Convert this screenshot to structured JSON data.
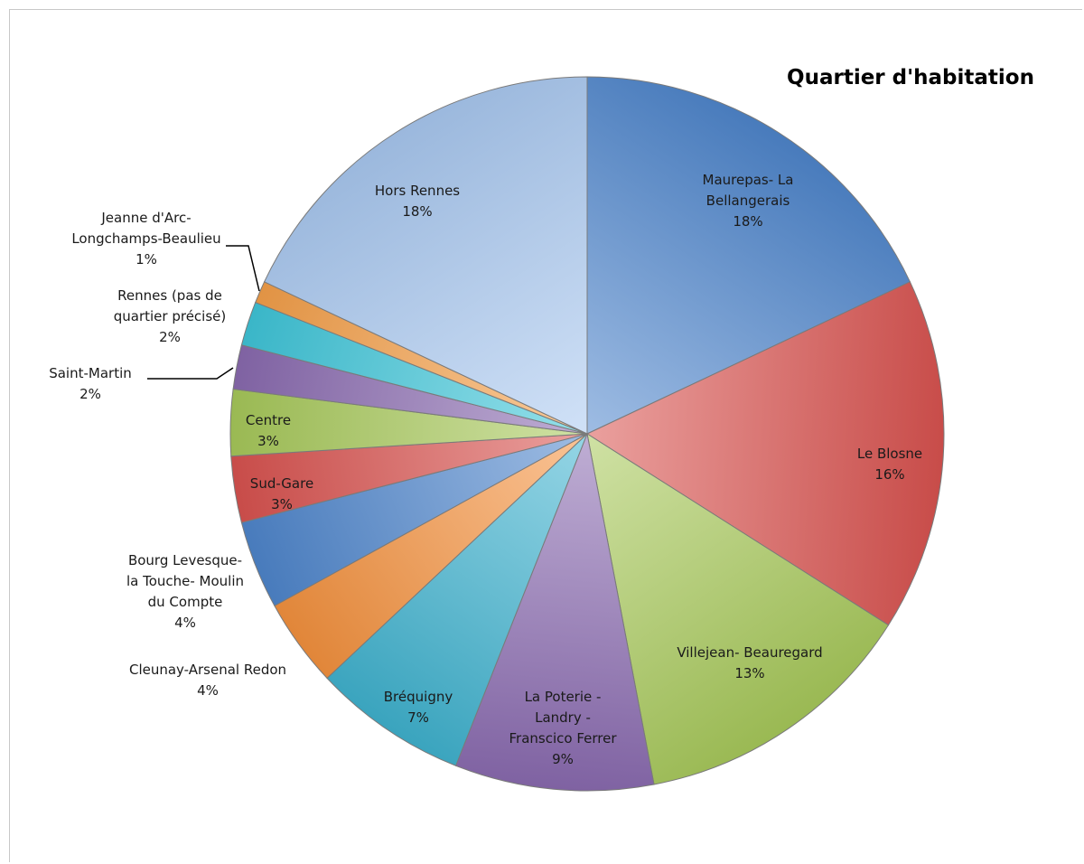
{
  "chart_data": {
    "type": "pie",
    "title": "Quartier d'habitation",
    "slices": [
      {
        "label": [
          "Maurepas- La",
          "Bellangerais",
          "18%"
        ],
        "value": 18,
        "color": "#4e86cc"
      },
      {
        "label": [
          "Le Blosne",
          "16%"
        ],
        "value": 16,
        "color": "#d9534f"
      },
      {
        "label": [
          "Villejean- Beauregard",
          "13%"
        ],
        "value": 13,
        "color": "#a7c95a"
      },
      {
        "label": [
          "La Poterie -",
          "Landry -",
          "Franscico Ferrer",
          "9%"
        ],
        "value": 9,
        "color": "#8a6bb0"
      },
      {
        "label": [
          "Bréquigny",
          "7%"
        ],
        "value": 7,
        "color": "#3fb2cf"
      },
      {
        "label": [
          "Cleunay-Arsenal Redon",
          "4%"
        ],
        "value": 4,
        "color": "#f5923e"
      },
      {
        "label": [
          "Bourg Levesque-",
          "la Touche- Moulin",
          "du Compte",
          "4%"
        ],
        "value": 4,
        "color": "#4e86cc"
      },
      {
        "label": [
          "Sud-Gare",
          "3%"
        ],
        "value": 3,
        "color": "#d9534f"
      },
      {
        "label": [
          "Centre",
          "3%"
        ],
        "value": 3,
        "color": "#a7c95a"
      },
      {
        "label": [
          "Saint-Martin",
          "2%"
        ],
        "value": 2,
        "color": "#8a6bb0"
      },
      {
        "label": [
          "Rennes (pas de",
          "quartier précisé)",
          "2%"
        ],
        "value": 2,
        "color": "#3fc6d9"
      },
      {
        "label": [
          "Jeanne d'Arc-",
          "Longchamps-Beaulieu",
          "1%"
        ],
        "value": 1,
        "color": "#f5a04a"
      },
      {
        "label": [
          "Hors Rennes",
          "18%"
        ],
        "value": 18,
        "color": "#a9c8f0"
      }
    ]
  }
}
